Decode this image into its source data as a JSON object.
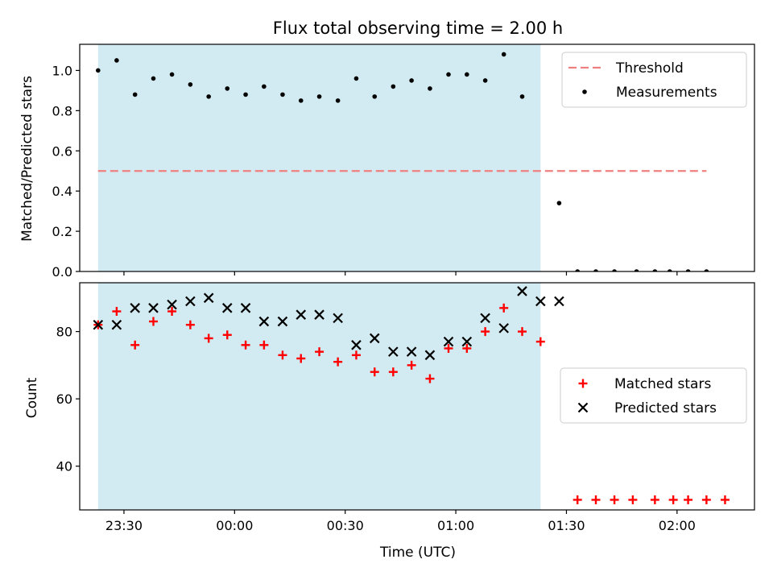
{
  "chart_data": [
    {
      "type": "scatter",
      "title": "Flux total observing time = 2.00 h",
      "xlabel": "",
      "ylabel": "Matched/Predicted stars",
      "x_axis": "time (UTC), decimal hours after 00:00; shared with lower panel",
      "xlim": [
        -0.7,
        2.35
      ],
      "ylim": [
        0.0,
        1.13
      ],
      "yticks": [
        0.0,
        0.2,
        0.4,
        0.6,
        0.8,
        1.0
      ],
      "ytick_labels": [
        "0.0",
        "0.2",
        "0.4",
        "0.6",
        "0.8",
        "1.0"
      ],
      "shaded_span": [
        -0.617,
        1.383
      ],
      "shaded_color": "#add8e6",
      "legend": {
        "placement": "upper right",
        "entries": [
          {
            "label": "Threshold",
            "marker": "dashed-line",
            "color": "#f08080"
          },
          {
            "label": "Measurements",
            "marker": "dot",
            "color": "#000000"
          }
        ]
      },
      "threshold": {
        "name": "Threshold",
        "y": 0.5,
        "x_range": [
          -0.617,
          2.133
        ],
        "color": "#f08080"
      },
      "series": [
        {
          "name": "Measurements",
          "color": "#000000",
          "x": [
            -0.617,
            -0.533,
            -0.45,
            -0.367,
            -0.283,
            -0.2,
            -0.117,
            -0.033,
            0.05,
            0.133,
            0.217,
            0.3,
            0.383,
            0.467,
            0.55,
            0.633,
            0.717,
            0.8,
            0.883,
            0.967,
            1.05,
            1.133,
            1.217,
            1.3,
            1.467,
            1.55,
            1.633,
            1.717,
            1.817,
            1.9,
            1.967,
            2.05,
            2.133
          ],
          "y": [
            1.0,
            1.05,
            0.88,
            0.96,
            0.98,
            0.93,
            0.87,
            0.91,
            0.88,
            0.92,
            0.88,
            0.85,
            0.87,
            0.85,
            0.96,
            0.87,
            0.92,
            0.95,
            0.91,
            0.98,
            0.98,
            0.95,
            1.08,
            0.87,
            0.34,
            0.0,
            0.0,
            0.0,
            0.0,
            0.0,
            0.0,
            0.0,
            0.0
          ]
        }
      ]
    },
    {
      "type": "scatter",
      "title": "",
      "xlabel": "Time (UTC)",
      "ylabel": "Count",
      "x_axis": "time (UTC), decimal hours after 00:00",
      "xlim": [
        -0.7,
        2.35
      ],
      "ylim": [
        27,
        94.5
      ],
      "xticks": [
        -0.5,
        0.0,
        0.5,
        1.0,
        1.5,
        2.0
      ],
      "xtick_labels": [
        "23:30",
        "00:00",
        "00:30",
        "01:00",
        "01:30",
        "02:00"
      ],
      "yticks": [
        40,
        60,
        80
      ],
      "ytick_labels": [
        "40",
        "60",
        "80"
      ],
      "shaded_span": [
        -0.617,
        1.383
      ],
      "shaded_color": "#add8e6",
      "legend": {
        "placement": "center right",
        "entries": [
          {
            "label": "Matched stars",
            "marker": "plus",
            "color": "#ff0000"
          },
          {
            "label": "Predicted stars",
            "marker": "x",
            "color": "#000000"
          }
        ]
      },
      "series": [
        {
          "name": "Matched stars",
          "marker": "plus",
          "color": "#ff0000",
          "x": [
            -0.617,
            -0.533,
            -0.45,
            -0.367,
            -0.283,
            -0.2,
            -0.117,
            -0.033,
            0.05,
            0.133,
            0.217,
            0.3,
            0.383,
            0.467,
            0.55,
            0.633,
            0.717,
            0.8,
            0.883,
            0.967,
            1.05,
            1.133,
            1.217,
            1.3,
            1.383,
            1.55,
            1.633,
            1.717,
            1.8,
            1.9,
            1.983,
            2.05,
            2.133,
            2.217
          ],
          "y": [
            82,
            86,
            76,
            83,
            86,
            82,
            78,
            79,
            76,
            76,
            73,
            72,
            74,
            71,
            73,
            68,
            68,
            70,
            66,
            75,
            75,
            80,
            87,
            80,
            77,
            30,
            30,
            30,
            30,
            30,
            30,
            30,
            30,
            30
          ]
        },
        {
          "name": "Predicted stars",
          "marker": "x",
          "color": "#000000",
          "x": [
            -0.617,
            -0.533,
            -0.45,
            -0.367,
            -0.283,
            -0.2,
            -0.117,
            -0.033,
            0.05,
            0.133,
            0.217,
            0.3,
            0.383,
            0.467,
            0.55,
            0.633,
            0.717,
            0.8,
            0.883,
            0.967,
            1.05,
            1.133,
            1.217,
            1.3,
            1.383,
            1.467
          ],
          "y": [
            82,
            82,
            87,
            87,
            88,
            89,
            90,
            87,
            87,
            83,
            83,
            85,
            85,
            84,
            76,
            78,
            74,
            74,
            73,
            77,
            77,
            84,
            81,
            92,
            89,
            89
          ]
        }
      ]
    }
  ]
}
